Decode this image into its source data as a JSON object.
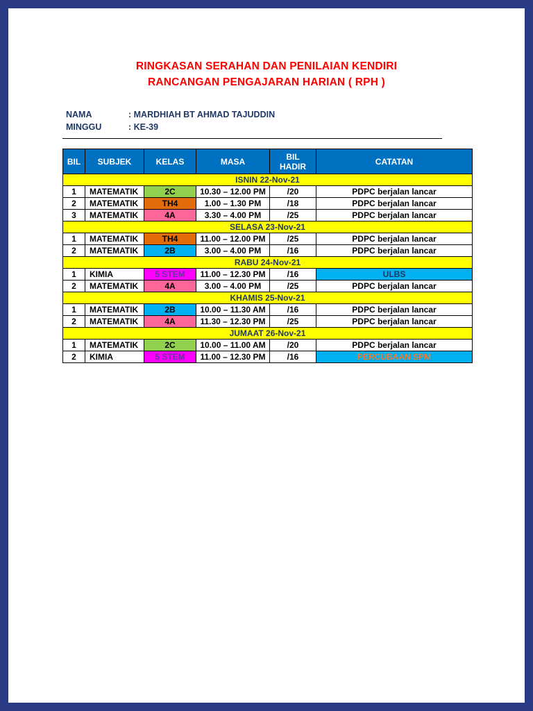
{
  "colors": {
    "viewer_background": "#2B3A85",
    "page_background": "#FFFFFF",
    "title_text": "#FF0000",
    "info_text": "#1F3864",
    "table_border": "#000000",
    "header_bg": "#0070C0",
    "header_text": "#FFFFFF",
    "day_row_bg": "#FFFF00",
    "day_row_text": "#1F3864"
  },
  "document": {
    "title_line1": "RINGKASAN SERAHAN DAN PENILAIAN KENDIRI",
    "title_line2": "RANCANGAN PENGAJARAN HARIAN ( RPH )",
    "info_rows": [
      {
        "label": "NAMA",
        "value": ": MARDHIAH BT AHMAD TAJUDDIN"
      },
      {
        "label": "MINGGU",
        "value": ": KE-39"
      }
    ]
  },
  "table": {
    "header": {
      "columns": [
        "BIL",
        "SUBJEK",
        "KELAS",
        "MASA",
        "BIL\nHADIR",
        "CATATAN"
      ]
    },
    "sections": [
      {
        "day": "ISNIN 22-Nov-21",
        "rows": [
          {
            "bil": "1",
            "subjek": "MATEMATIK",
            "kelas": "2C",
            "kelas_bg": "#92D050",
            "kelas_color": "#000000",
            "masa": "10.30 – 12.00 PM",
            "hadir": "/20",
            "catatan": "PDPC berjalan lancar",
            "catatan_bg": "",
            "catatan_color": ""
          },
          {
            "bil": "2",
            "subjek": "MATEMATIK",
            "kelas": "TH4",
            "kelas_bg": "#E36C0A",
            "kelas_color": "#000000",
            "masa": "1.00 – 1.30 PM",
            "hadir": "/18",
            "catatan": "PDPC berjalan lancar",
            "catatan_bg": "",
            "catatan_color": ""
          },
          {
            "bil": "3",
            "subjek": "MATEMATIK",
            "kelas": "4A",
            "kelas_bg": "#FF6699",
            "kelas_color": "#000000",
            "masa": "3.30 – 4.00 PM",
            "hadir": "/25",
            "catatan": "PDPC berjalan lancar",
            "catatan_bg": "",
            "catatan_color": ""
          }
        ]
      },
      {
        "day": "SELASA 23-Nov-21",
        "rows": [
          {
            "bil": "1",
            "subjek": "MATEMATIK",
            "kelas": "TH4",
            "kelas_bg": "#E36C0A",
            "kelas_color": "#000000",
            "masa": "11.00 – 12.00 PM",
            "hadir": "/25",
            "catatan": "PDPC berjalan lancar",
            "catatan_bg": "",
            "catatan_color": ""
          },
          {
            "bil": "2",
            "subjek": "MATEMATIK",
            "kelas": "2B",
            "kelas_bg": "#00B0F0",
            "kelas_color": "#000000",
            "masa": "3.00 – 4.00 PM",
            "hadir": "/16",
            "catatan": "PDPC berjalan lancar",
            "catatan_bg": "",
            "catatan_color": ""
          }
        ]
      },
      {
        "day": "RABU 24-Nov-21",
        "rows": [
          {
            "bil": "1",
            "subjek": "KIMIA",
            "kelas": "5 STEM",
            "kelas_bg": "#FF00FF",
            "kelas_color": "#7030A0",
            "masa": "11.00 – 12.30 PM",
            "hadir": "/16",
            "catatan": "ULBS",
            "catatan_bg": "#00B0F0",
            "catatan_color": "#1F3864"
          },
          {
            "bil": "2",
            "subjek": "MATEMATIK",
            "kelas": "4A",
            "kelas_bg": "#FF6699",
            "kelas_color": "#000000",
            "masa": "3.00 – 4.00 PM",
            "hadir": "/25",
            "catatan": "PDPC berjalan lancar",
            "catatan_bg": "",
            "catatan_color": ""
          }
        ]
      },
      {
        "day": "KHAMIS 25-Nov-21",
        "rows": [
          {
            "bil": "1",
            "subjek": "MATEMATIK",
            "kelas": "2B",
            "kelas_bg": "#00B0F0",
            "kelas_color": "#000000",
            "masa": "10.00 – 11.30 AM",
            "hadir": "/16",
            "catatan": "PDPC berjalan lancar",
            "catatan_bg": "",
            "catatan_color": ""
          },
          {
            "bil": "2",
            "subjek": "MATEMATIK",
            "kelas": "4A",
            "kelas_bg": "#FF6699",
            "kelas_color": "#000000",
            "masa": "11.30 – 12.30 PM",
            "hadir": "/25",
            "catatan": "PDPC berjalan lancar",
            "catatan_bg": "",
            "catatan_color": ""
          }
        ]
      },
      {
        "day": "JUMAAT 26-Nov-21",
        "rows": [
          {
            "bil": "1",
            "subjek": "MATEMATIK",
            "kelas": "2C",
            "kelas_bg": "#92D050",
            "kelas_color": "#000000",
            "masa": "10.00 – 11.00 AM",
            "hadir": "/20",
            "catatan": "PDPC berjalan lancar",
            "catatan_bg": "",
            "catatan_color": ""
          },
          {
            "bil": "2",
            "subjek": "KIMIA",
            "kelas": "5 STEM",
            "kelas_bg": "#FF00FF",
            "kelas_color": "#7030A0",
            "masa": "11.00 – 12.30 PM",
            "hadir": "/16",
            "catatan": "PERCUBAAN SPM",
            "catatan_bg": "#00B0F0",
            "catatan_color": "#ED7D31"
          }
        ]
      }
    ]
  }
}
